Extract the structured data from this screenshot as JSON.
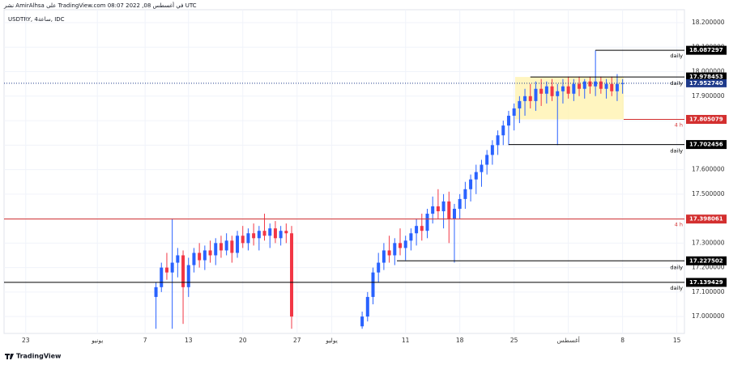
{
  "header": "نشر AmirAlhsa على TradingView.com في أغسطس 08, 2022 08:07 UTC",
  "footer": "TradingView",
  "chart_data": {
    "type": "candlestick",
    "title": "USDTRY, 4ساعة, IDC",
    "up_color": "#2962ff",
    "down_color": "#f23645",
    "xlim": [
      -2,
      60.7
    ],
    "ylim": [
      16.931,
      18.253
    ],
    "grid": true,
    "xticks": [
      {
        "value": 0,
        "label": "23"
      },
      {
        "value": 6.6,
        "label": "يونيو"
      },
      {
        "value": 11,
        "label": "7"
      },
      {
        "value": 15,
        "label": "13"
      },
      {
        "value": 20,
        "label": "20"
      },
      {
        "value": 25,
        "label": "27"
      },
      {
        "value": 28.2,
        "label": "يوليو"
      },
      {
        "value": 35,
        "label": "11"
      },
      {
        "value": 40,
        "label": "18"
      },
      {
        "value": 45,
        "label": "25"
      },
      {
        "value": 50,
        "label": "أغسطس"
      },
      {
        "value": 55,
        "label": "8"
      },
      {
        "value": 60,
        "label": "15"
      }
    ],
    "yticks": [
      {
        "value": 17,
        "label": "17.000000"
      },
      {
        "value": 17.1,
        "label": "17.100000"
      },
      {
        "value": 17.2,
        "label": "17.200000"
      },
      {
        "value": 17.3,
        "label": "17.300000"
      },
      {
        "value": 17.4,
        "label": "17.400000"
      },
      {
        "value": 17.5,
        "label": "17.500000"
      },
      {
        "value": 17.6,
        "label": "17.600000"
      },
      {
        "value": 17.7,
        "label": "17.700000"
      },
      {
        "value": 17.8,
        "label": "17.800000"
      },
      {
        "value": 17.9,
        "label": "17.900000"
      },
      {
        "value": 18,
        "label": "18.000000"
      },
      {
        "value": 18.1,
        "label": "18.100000"
      },
      {
        "value": 18.2,
        "label": "18.200000"
      }
    ],
    "zone": {
      "color": "#fff3b0",
      "x": [
        45.1,
        55.1
      ],
      "y": [
        17.805079,
        17.978453
      ]
    },
    "levels": [
      {
        "value": 18.087297,
        "tag": "daily",
        "color": "#000000",
        "from": 52.5
      },
      {
        "value": 17.978453,
        "tag": "daily",
        "color": "#000000",
        "from": 46.5
      },
      {
        "value": 17.805079,
        "tag": "4 h",
        "color": "#d32f2f",
        "from": 55.1
      },
      {
        "value": 17.702456,
        "tag": "daily",
        "color": "#000000",
        "from": 44.5
      },
      {
        "value": 17.398061,
        "tag": "4 h",
        "color": "#d32f2f",
        "from": -2
      },
      {
        "value": 17.227502,
        "tag": "daily",
        "color": "#000000",
        "from": 34.2
      },
      {
        "value": 17.139429,
        "tag": "daily",
        "color": "#000000",
        "from": -2
      }
    ],
    "last_price": {
      "value": 17.95274,
      "label": "17.952740",
      "color": "#1e3a8a"
    },
    "candles": [
      [
        12.0,
        17.08,
        17.14,
        16.95,
        17.12
      ],
      [
        12.5,
        17.12,
        17.22,
        17.1,
        17.2
      ],
      [
        13.0,
        17.2,
        17.26,
        17.15,
        17.18
      ],
      [
        13.5,
        17.18,
        17.4,
        16.95,
        17.22
      ],
      [
        14.0,
        17.22,
        17.28,
        17.16,
        17.25
      ],
      [
        14.5,
        17.25,
        17.27,
        16.97,
        17.12
      ],
      [
        15.0,
        17.12,
        17.24,
        17.08,
        17.21
      ],
      [
        15.5,
        17.21,
        17.28,
        17.18,
        17.26
      ],
      [
        16.0,
        17.26,
        17.3,
        17.2,
        17.23
      ],
      [
        16.5,
        17.23,
        17.29,
        17.19,
        17.27
      ],
      [
        17.0,
        17.27,
        17.31,
        17.22,
        17.25
      ],
      [
        17.5,
        17.25,
        17.32,
        17.21,
        17.3
      ],
      [
        18.0,
        17.3,
        17.33,
        17.24,
        17.27
      ],
      [
        18.5,
        17.27,
        17.34,
        17.25,
        17.31
      ],
      [
        19.0,
        17.31,
        17.33,
        17.22,
        17.26
      ],
      [
        19.5,
        17.26,
        17.35,
        17.24,
        17.33
      ],
      [
        20.0,
        17.33,
        17.37,
        17.28,
        17.3
      ],
      [
        20.5,
        17.3,
        17.36,
        17.27,
        17.34
      ],
      [
        21.0,
        17.34,
        17.38,
        17.29,
        17.32
      ],
      [
        21.5,
        17.32,
        17.37,
        17.27,
        17.35
      ],
      [
        22.0,
        17.35,
        17.42,
        17.31,
        17.33
      ],
      [
        22.5,
        17.33,
        17.38,
        17.28,
        17.36
      ],
      [
        23.0,
        17.36,
        17.39,
        17.3,
        17.32
      ],
      [
        23.5,
        17.32,
        17.37,
        17.29,
        17.35
      ],
      [
        24.0,
        17.35,
        17.38,
        17.3,
        17.34
      ],
      [
        24.5,
        17.34,
        17.37,
        16.95,
        17.0
      ],
      [
        31.0,
        16.96,
        17.02,
        16.95,
        17.0
      ],
      [
        31.5,
        17.0,
        17.1,
        16.98,
        17.08
      ],
      [
        32.0,
        17.08,
        17.2,
        17.05,
        17.18
      ],
      [
        32.5,
        17.18,
        17.26,
        17.14,
        17.22
      ],
      [
        33.0,
        17.22,
        17.3,
        17.19,
        17.27
      ],
      [
        33.5,
        17.27,
        17.33,
        17.22,
        17.25
      ],
      [
        34.0,
        17.25,
        17.32,
        17.21,
        17.3
      ],
      [
        34.5,
        17.3,
        17.36,
        17.25,
        17.28
      ],
      [
        35.0,
        17.28,
        17.33,
        17.23,
        17.31
      ],
      [
        35.5,
        17.31,
        17.36,
        17.27,
        17.34
      ],
      [
        36.0,
        17.34,
        17.4,
        17.29,
        17.37
      ],
      [
        36.5,
        17.37,
        17.42,
        17.31,
        17.35
      ],
      [
        37.0,
        17.35,
        17.44,
        17.32,
        17.42
      ],
      [
        37.5,
        17.42,
        17.49,
        17.38,
        17.45
      ],
      [
        38.0,
        17.45,
        17.52,
        17.4,
        17.43
      ],
      [
        38.5,
        17.43,
        17.5,
        17.36,
        17.47
      ],
      [
        39.0,
        17.47,
        17.51,
        17.3,
        17.4
      ],
      [
        39.5,
        17.4,
        17.46,
        17.22,
        17.44
      ],
      [
        40.0,
        17.44,
        17.5,
        17.4,
        17.48
      ],
      [
        40.5,
        17.48,
        17.55,
        17.44,
        17.52
      ],
      [
        41.0,
        17.52,
        17.58,
        17.47,
        17.56
      ],
      [
        41.5,
        17.56,
        17.62,
        17.5,
        17.59
      ],
      [
        42.0,
        17.59,
        17.64,
        17.53,
        17.62
      ],
      [
        42.5,
        17.62,
        17.68,
        17.58,
        17.66
      ],
      [
        43.0,
        17.66,
        17.72,
        17.62,
        17.7
      ],
      [
        43.5,
        17.7,
        17.76,
        17.66,
        17.74
      ],
      [
        44.0,
        17.74,
        17.8,
        17.7,
        17.78
      ],
      [
        44.5,
        17.78,
        17.84,
        17.7,
        17.82
      ],
      [
        45.0,
        17.82,
        17.87,
        17.76,
        17.85
      ],
      [
        45.5,
        17.85,
        17.9,
        17.79,
        17.88
      ],
      [
        46.0,
        17.88,
        17.93,
        17.82,
        17.9
      ],
      [
        46.5,
        17.9,
        17.95,
        17.85,
        17.88
      ],
      [
        47.0,
        17.88,
        17.96,
        17.84,
        17.93
      ],
      [
        47.5,
        17.93,
        17.97,
        17.86,
        17.91
      ],
      [
        48.0,
        17.91,
        17.96,
        17.87,
        17.94
      ],
      [
        48.5,
        17.94,
        17.97,
        17.88,
        17.9
      ],
      [
        49.0,
        17.9,
        17.95,
        17.7,
        17.92
      ],
      [
        49.5,
        17.92,
        17.97,
        17.87,
        17.94
      ],
      [
        50.0,
        17.94,
        17.98,
        17.89,
        17.91
      ],
      [
        50.5,
        17.91,
        17.97,
        17.88,
        17.95
      ],
      [
        51.0,
        17.95,
        17.98,
        17.9,
        17.93
      ],
      [
        51.5,
        17.93,
        17.97,
        17.89,
        17.96
      ],
      [
        52.0,
        17.96,
        17.98,
        17.91,
        17.94
      ],
      [
        52.5,
        17.94,
        18.087,
        17.9,
        17.96
      ],
      [
        53.0,
        17.96,
        17.98,
        17.91,
        17.93
      ],
      [
        53.5,
        17.93,
        17.97,
        17.89,
        17.95
      ],
      [
        54.0,
        17.95,
        17.98,
        17.9,
        17.92
      ],
      [
        54.5,
        17.92,
        17.99,
        17.88,
        17.95
      ],
      [
        55.0,
        17.95,
        17.97,
        17.91,
        17.953
      ]
    ]
  }
}
